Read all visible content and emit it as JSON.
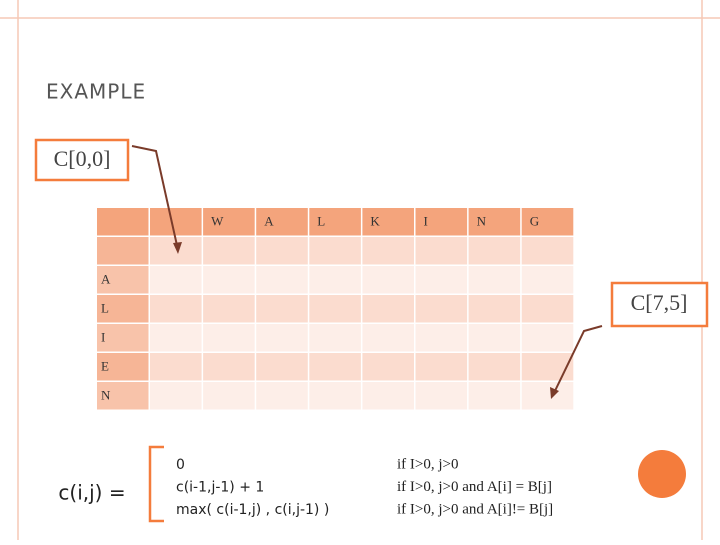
{
  "slide": {
    "title": "Example",
    "callouts": [
      "C[0,0]",
      "C[7,5]"
    ],
    "table": {
      "column_headers": [
        "W",
        "A",
        "L",
        "K",
        "I",
        "N",
        "G"
      ],
      "row_headers": [
        "A",
        "L",
        "I",
        "E",
        "N"
      ]
    },
    "formula": {
      "lhs": "c(i,j) =",
      "cases": [
        {
          "value": "0",
          "condition": "if I>0, j>0"
        },
        {
          "value": "c(i-1,j-1) + 1",
          "condition": "if I>0, j>0 and  A[i] = B[j]"
        },
        {
          "value": "max( c(i-1,j) , c(i,j-1) )",
          "condition": "if I>0, j>0 and  A[i]!= B[j]"
        }
      ]
    }
  }
}
